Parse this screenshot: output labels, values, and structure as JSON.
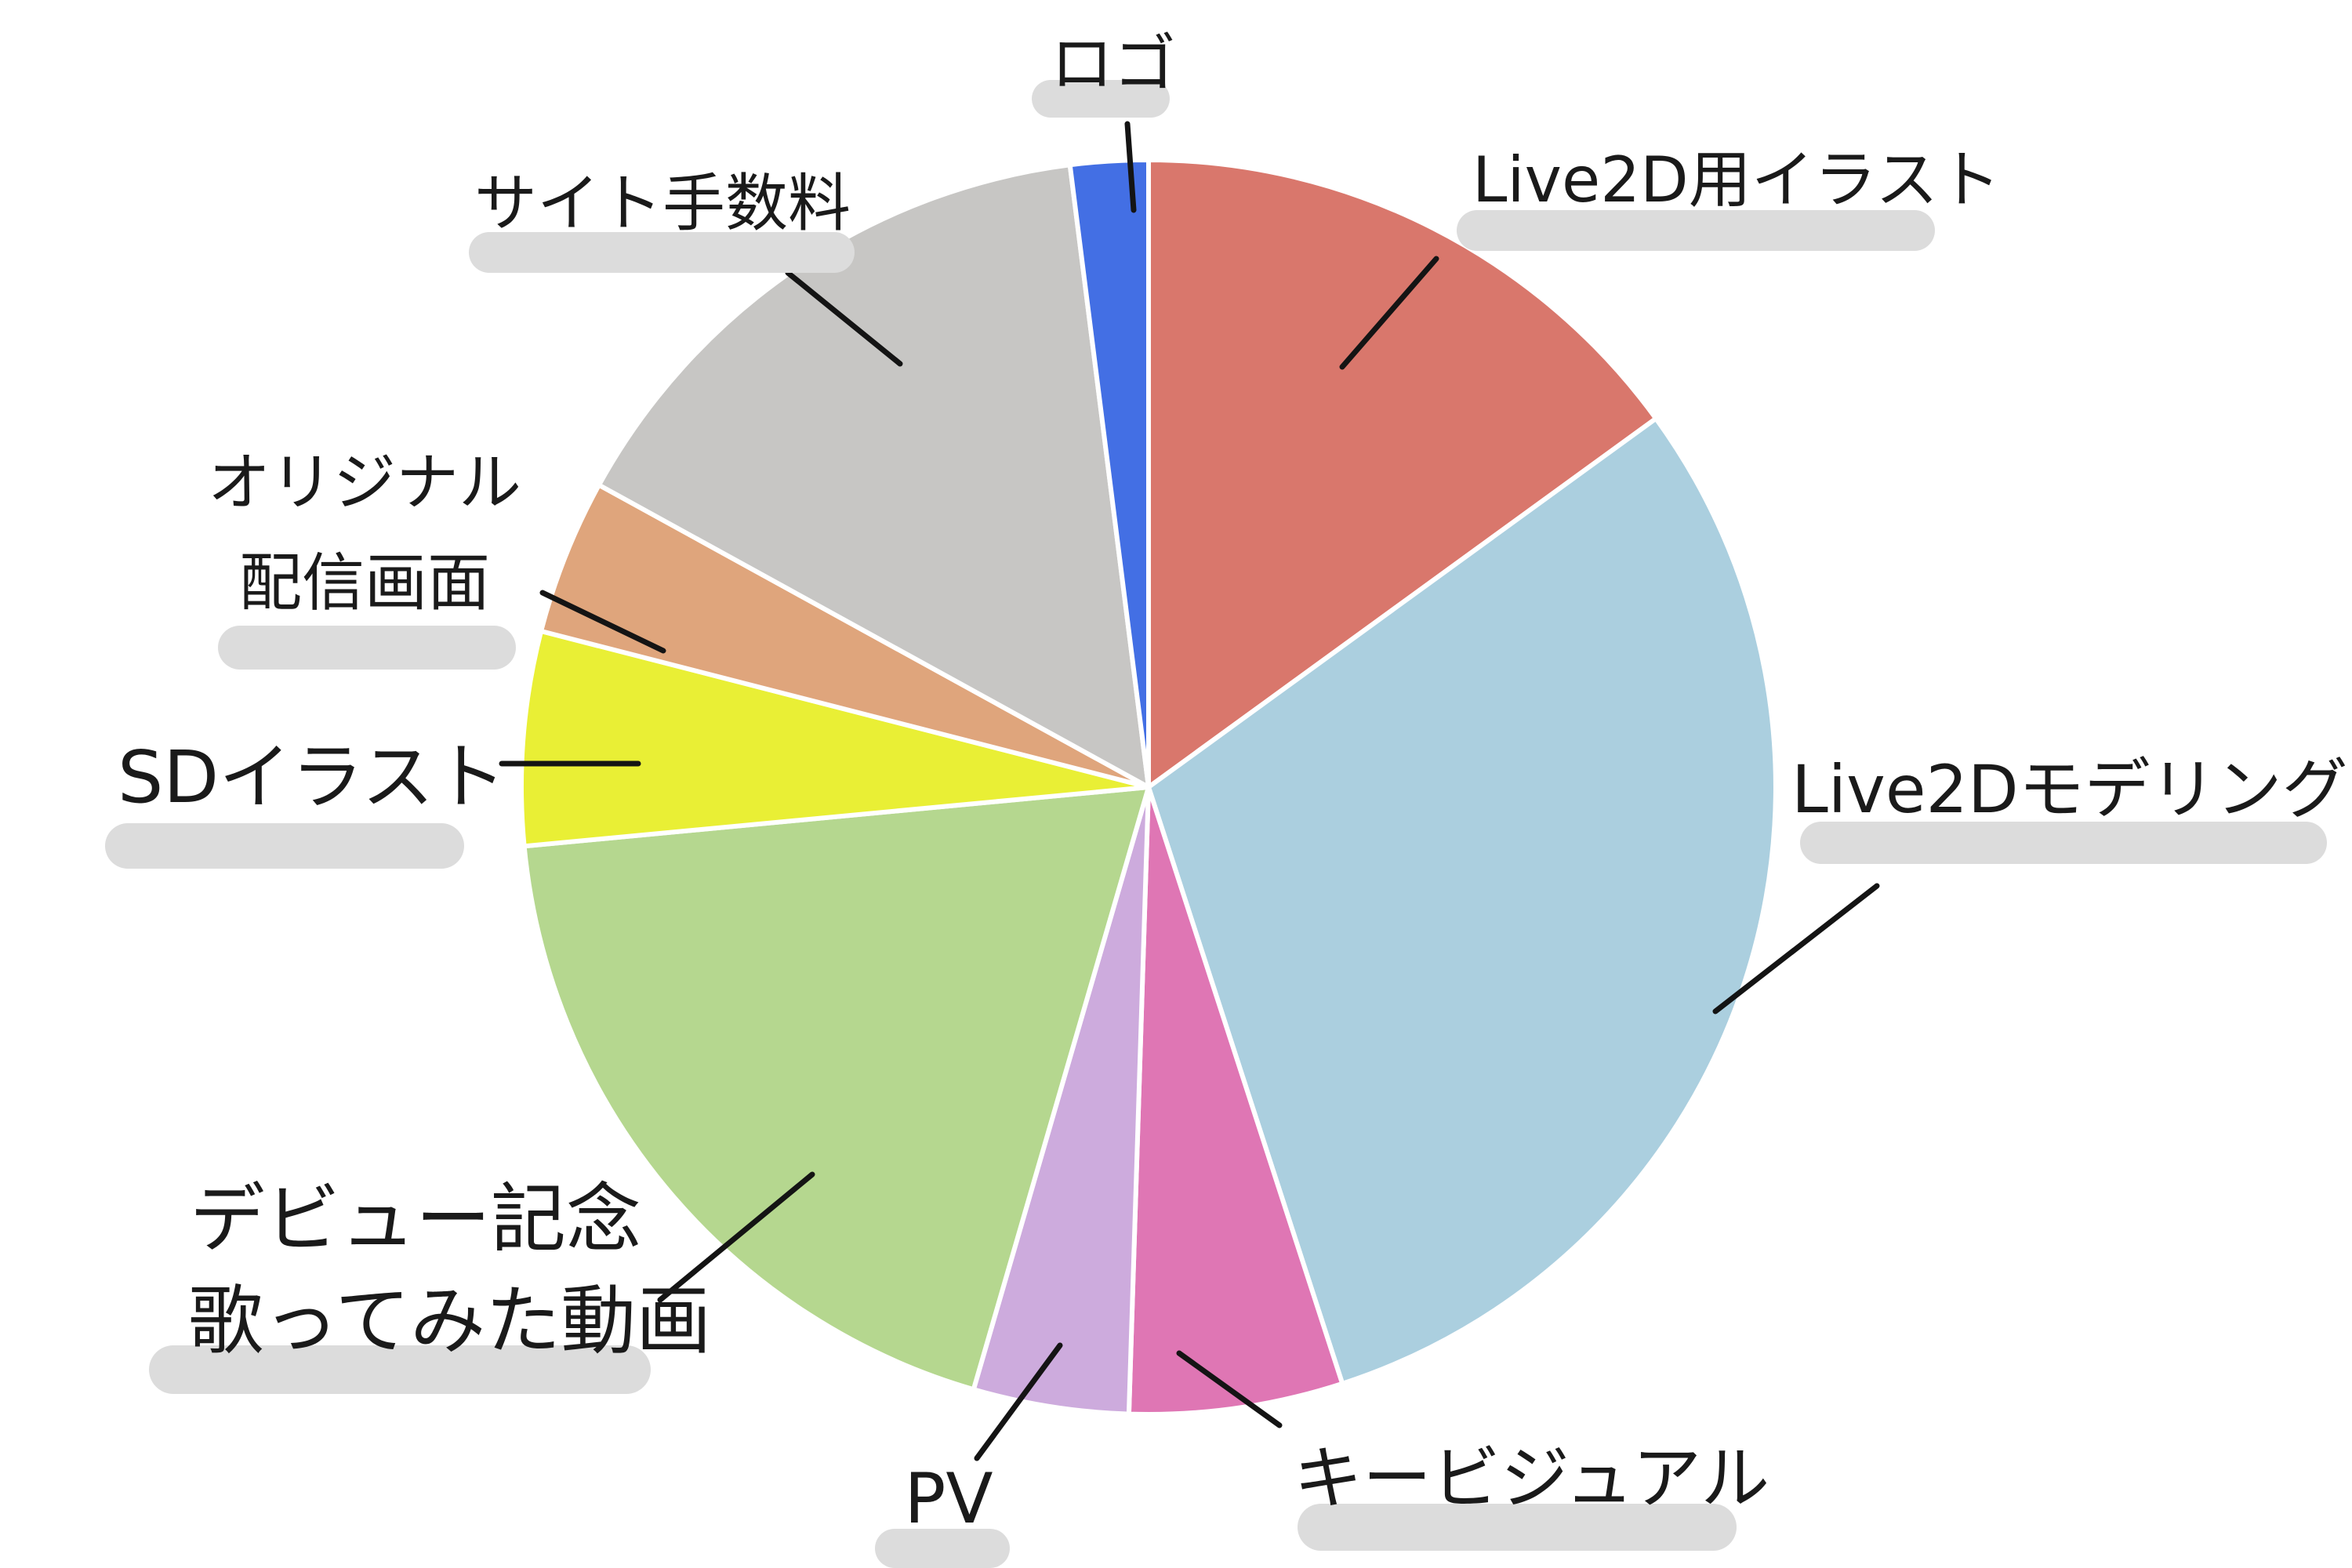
{
  "chart_data": {
    "type": "pie",
    "title": "",
    "start_angle_deg": 0,
    "direction": "clockwise",
    "unit": "percent",
    "background_color": "#ffffff",
    "label_text_color": "#1a1a1a",
    "label_highlight_color": "#dcdcdc",
    "leader_line_color": "#141414",
    "slice_border_color": "#ffffff",
    "segments": [
      {
        "name": "live2d-illustration",
        "label": "Live2D用イラスト",
        "percent": 15,
        "color": "#d9776c"
      },
      {
        "name": "live2d-modeling",
        "label": "Live2Dモデリング",
        "percent": 30,
        "color": "#abcfdf"
      },
      {
        "name": "key-visual",
        "label": "キービジュアル",
        "percent": 5.5,
        "color": "#df76b4"
      },
      {
        "name": "pv",
        "label": "PV",
        "percent": 4,
        "color": "#cdabdd"
      },
      {
        "name": "debut-cover-song-video",
        "label": "デビュー記念",
        "label2": "歌ってみた動画",
        "percent": 19,
        "color": "#b5d78f"
      },
      {
        "name": "sd-illustration",
        "label": "SDイラスト",
        "percent": 5.5,
        "color": "#e9ef35"
      },
      {
        "name": "original-stream-overlay",
        "label": "オリジナル",
        "label2": "配信画面",
        "percent": 4,
        "color": "#dfa57c"
      },
      {
        "name": "site-fee",
        "label": "サイト手数料",
        "percent": 15,
        "color": "#c7c6c4"
      },
      {
        "name": "logo",
        "label": "ロゴ",
        "percent": 2,
        "color": "#436fe4"
      }
    ]
  }
}
